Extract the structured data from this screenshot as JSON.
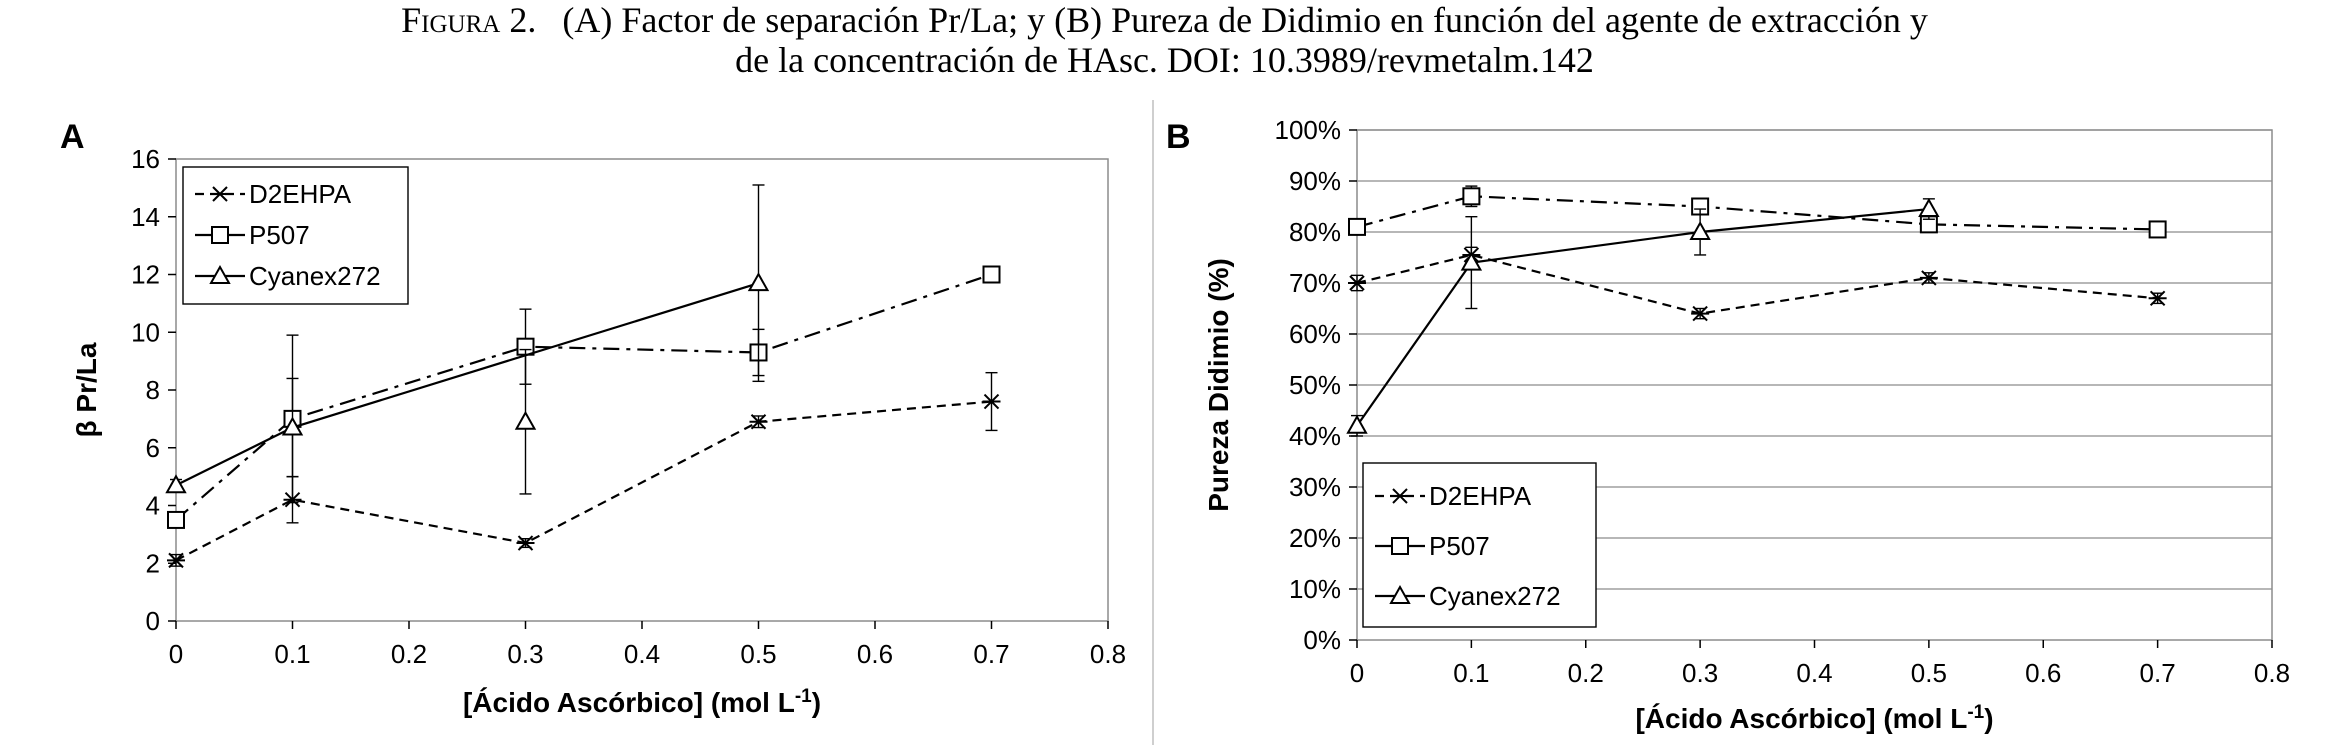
{
  "figure": {
    "label": "Figura 2.",
    "line1": "(A) Factor de separación Pr/La; y (B) Pureza de Didimio en función del agente de extracción y",
    "line2": "de la concentración de HAsc. DOI: 10.3989/revmetalm.142"
  },
  "chart_data": [
    {
      "type": "line",
      "panel_label": "A",
      "xlabel": "[Ácido Ascórbico] (mol L",
      "xlabel_sup": "-1",
      "xlabel_end": ")",
      "ylabel": "β Pr/La",
      "xlim": [
        0,
        0.8
      ],
      "ylim": [
        0,
        16
      ],
      "x_ticks": [
        0,
        0.1,
        0.2,
        0.3,
        0.4,
        0.5,
        0.6,
        0.7,
        0.8
      ],
      "x_tick_labels": [
        "0",
        "0.1",
        "0.2",
        "0.3",
        "0.4",
        "0.5",
        "0.6",
        "0.7",
        "0.8"
      ],
      "y_ticks": [
        0,
        2,
        4,
        6,
        8,
        10,
        12,
        14,
        16
      ],
      "y_tick_labels": [
        "0",
        "2",
        "4",
        "6",
        "8",
        "10",
        "12",
        "14",
        "16"
      ],
      "grid": false,
      "legend_position": "top-left",
      "series": [
        {
          "name": "D2EHPA",
          "marker": "x",
          "dash": "dashed",
          "x": [
            0,
            0.1,
            0.3,
            0.5,
            0.7
          ],
          "y": [
            2.1,
            4.2,
            2.7,
            6.9,
            7.6
          ],
          "err": [
            0.2,
            0.8,
            0.15,
            0.2,
            1.0
          ]
        },
        {
          "name": "P507",
          "marker": "square",
          "dash": "dashdot",
          "x": [
            0,
            0.1,
            0.3,
            0.5,
            0.7
          ],
          "y": [
            3.5,
            7.0,
            9.5,
            9.3,
            12.0
          ],
          "err": [
            0.2,
            2.9,
            1.3,
            0.8,
            0.2
          ]
        },
        {
          "name": "Cyanex272",
          "marker": "triangle",
          "dash": "solid",
          "x": [
            0,
            0.1,
            0.5
          ],
          "y": [
            4.7,
            6.7,
            11.7
          ],
          "err": [
            0.2,
            1.7,
            3.4
          ],
          "x_extra": [
            0.3
          ],
          "y_extra": [
            6.9
          ],
          "err_extra": [
            2.5
          ]
        }
      ]
    },
    {
      "type": "line",
      "panel_label": "B",
      "xlabel": "[Ácido Ascórbico] (mol L",
      "xlabel_sup": "-1",
      "xlabel_end": ")",
      "ylabel": "Pureza Didimio (%)",
      "xlim": [
        0,
        0.8
      ],
      "ylim": [
        0,
        100
      ],
      "x_ticks": [
        0,
        0.1,
        0.2,
        0.3,
        0.4,
        0.5,
        0.6,
        0.7,
        0.8
      ],
      "x_tick_labels": [
        "0",
        "0.1",
        "0.2",
        "0.3",
        "0.4",
        "0.5",
        "0.6",
        "0.7",
        "0.8"
      ],
      "y_ticks": [
        0,
        10,
        20,
        30,
        40,
        50,
        60,
        70,
        80,
        90,
        100
      ],
      "y_tick_labels": [
        "0%",
        "10%",
        "20%",
        "30%",
        "40%",
        "50%",
        "60%",
        "70%",
        "80%",
        "90%",
        "100%"
      ],
      "grid": true,
      "legend_position": "bottom-left",
      "series": [
        {
          "name": "D2EHPA",
          "marker": "x",
          "dash": "dashed",
          "x": [
            0,
            0.1,
            0.3,
            0.5,
            0.7
          ],
          "y": [
            70,
            75.5,
            64,
            71,
            67
          ],
          "err": [
            1.5,
            1.5,
            1,
            1,
            1
          ]
        },
        {
          "name": "P507",
          "marker": "square",
          "dash": "dashdot",
          "x": [
            0,
            0.1,
            0.3,
            0.5,
            0.7
          ],
          "y": [
            81,
            87,
            85,
            81.5,
            80.5
          ],
          "err": [
            1.5,
            2,
            1.5,
            1.5,
            1.5
          ]
        },
        {
          "name": "Cyanex272",
          "marker": "triangle",
          "dash": "solid",
          "x": [
            0,
            0.1,
            0.3,
            0.5
          ],
          "y": [
            42,
            74,
            80,
            84.5
          ],
          "err": [
            2,
            9,
            4.5,
            2
          ]
        }
      ]
    }
  ]
}
